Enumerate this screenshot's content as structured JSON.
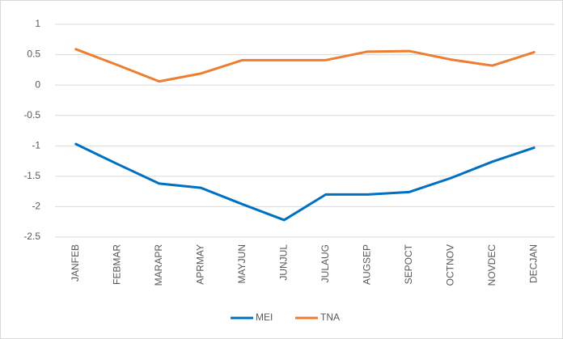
{
  "chart_data": {
    "type": "line",
    "categories": [
      "JANFEB",
      "FEBMAR",
      "MARAPR",
      "APRMAY",
      "MAYJUN",
      "JUNJUL",
      "JULAUG",
      "AUGSEP",
      "SEPOCT",
      "OCTNOV",
      "NOVDEC",
      "DECJAN"
    ],
    "series": [
      {
        "name": "MEI",
        "color": "#0070c0",
        "values": [
          -0.97,
          -1.3,
          -1.62,
          -1.69,
          -1.96,
          -2.22,
          -1.8,
          -1.8,
          -1.76,
          -1.53,
          -1.26,
          -1.03
        ]
      },
      {
        "name": "TNA",
        "color": "#ed7d31",
        "values": [
          0.59,
          0.33,
          0.06,
          0.19,
          0.41,
          0.41,
          0.41,
          0.55,
          0.56,
          0.42,
          0.32,
          0.54
        ]
      }
    ],
    "ylim": [
      -2.5,
      1
    ],
    "yticks": [
      1,
      0.5,
      0,
      -0.5,
      -1,
      -1.5,
      -2,
      -2.5
    ],
    "grid": true,
    "legend": "bottom"
  }
}
